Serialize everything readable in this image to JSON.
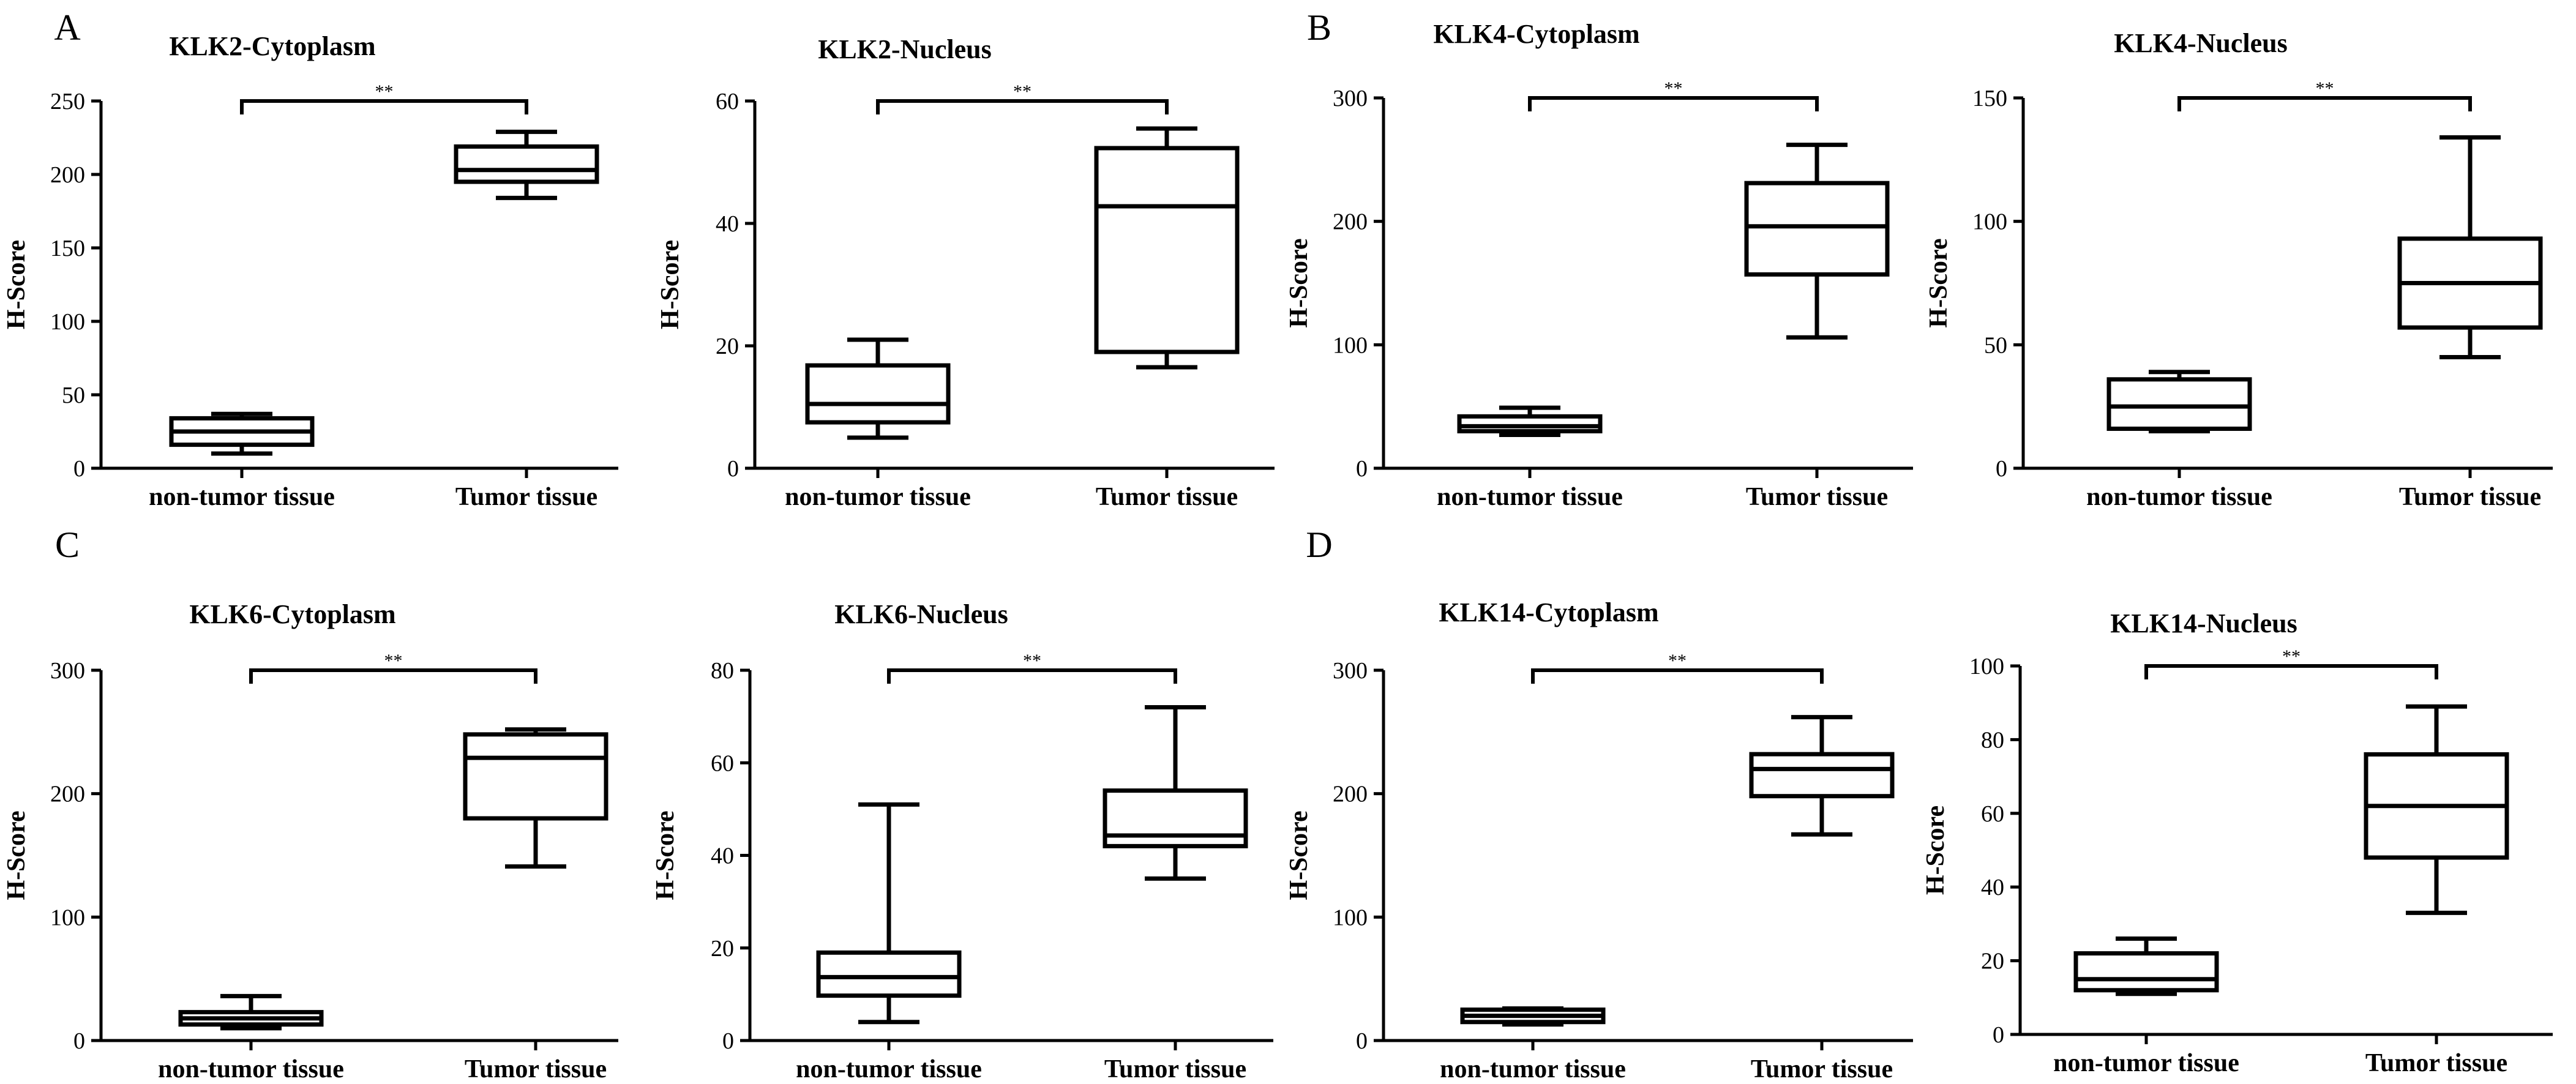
{
  "panel_letters": [
    "A",
    "B",
    "C",
    "D"
  ],
  "chart_data": [
    {
      "type": "box",
      "title": "KLK2-Cytoplasm",
      "xlabel": "",
      "ylabel": "H-Score",
      "ylim": [
        0,
        250
      ],
      "yticks": [
        0,
        50,
        100,
        150,
        200,
        250
      ],
      "categories": [
        "non-tumor tissue",
        "Tumor tissue"
      ],
      "boxes": [
        {
          "category": "non-tumor tissue",
          "min": 10,
          "q1": 16,
          "median": 25,
          "q3": 34,
          "max": 37
        },
        {
          "category": "Tumor tissue",
          "min": 184,
          "q1": 195,
          "median": 203,
          "q3": 219,
          "max": 229
        }
      ],
      "significance": "**"
    },
    {
      "type": "box",
      "title": "KLK2-Nucleus",
      "xlabel": "",
      "ylabel": "H-Score",
      "ylim": [
        0,
        60
      ],
      "yticks": [
        0,
        20,
        40,
        60
      ],
      "categories": [
        "non-tumor tissue",
        "Tumor tissue"
      ],
      "boxes": [
        {
          "category": "non-tumor tissue",
          "min": 5,
          "q1": 7.5,
          "median": 10.5,
          "q3": 16.8,
          "max": 21
        },
        {
          "category": "Tumor tissue",
          "min": 16.5,
          "q1": 19,
          "median": 42.8,
          "q3": 52.3,
          "max": 55.5
        }
      ],
      "significance": "**"
    },
    {
      "type": "box",
      "title": "KLK4-Cytoplasm",
      "xlabel": "",
      "ylabel": "H-Score",
      "ylim": [
        0,
        300
      ],
      "yticks": [
        0,
        100,
        200,
        300
      ],
      "categories": [
        "non-tumor tissue",
        "Tumor tissue"
      ],
      "boxes": [
        {
          "category": "non-tumor tissue",
          "min": 27,
          "q1": 30,
          "median": 34,
          "q3": 42,
          "max": 49
        },
        {
          "category": "Tumor tissue",
          "min": 106,
          "q1": 157,
          "median": 196,
          "q3": 231,
          "max": 262
        }
      ],
      "significance": "**"
    },
    {
      "type": "box",
      "title": "KLK4-Nucleus",
      "xlabel": "",
      "ylabel": "H-Score",
      "ylim": [
        0,
        150
      ],
      "yticks": [
        0,
        50,
        100,
        150
      ],
      "categories": [
        "non-tumor tissue",
        "Tumor tissue"
      ],
      "boxes": [
        {
          "category": "non-tumor tissue",
          "min": 15,
          "q1": 16,
          "median": 25,
          "q3": 36,
          "max": 39
        },
        {
          "category": "Tumor tissue",
          "min": 45,
          "q1": 57,
          "median": 75,
          "q3": 93,
          "max": 134
        }
      ],
      "significance": "**"
    },
    {
      "type": "box",
      "title": "KLK6-Cytoplasm",
      "xlabel": "",
      "ylabel": "H-Score",
      "ylim": [
        0,
        300
      ],
      "yticks": [
        0,
        100,
        200,
        300
      ],
      "categories": [
        "non-tumor tissue",
        "Tumor tissue"
      ],
      "boxes": [
        {
          "category": "non-tumor tissue",
          "min": 10,
          "q1": 13,
          "median": 18,
          "q3": 23,
          "max": 36
        },
        {
          "category": "Tumor tissue",
          "min": 141,
          "q1": 180,
          "median": 229,
          "q3": 248,
          "max": 252
        }
      ],
      "significance": "**"
    },
    {
      "type": "box",
      "title": "KLK6-Nucleus",
      "xlabel": "",
      "ylabel": "H-Score",
      "ylim": [
        0,
        80
      ],
      "yticks": [
        0,
        20,
        40,
        60,
        80
      ],
      "categories": [
        "non-tumor tissue",
        "Tumor tissue"
      ],
      "boxes": [
        {
          "category": "non-tumor tissue",
          "min": 4,
          "q1": 9.7,
          "median": 13.7,
          "q3": 19,
          "max": 51
        },
        {
          "category": "Tumor tissue",
          "min": 35,
          "q1": 42,
          "median": 44.3,
          "q3": 54,
          "max": 72
        }
      ],
      "significance": "**"
    },
    {
      "type": "box",
      "title": "KLK14-Cytoplasm",
      "xlabel": "",
      "ylabel": "H-Score",
      "ylim": [
        0,
        300
      ],
      "yticks": [
        0,
        100,
        200,
        300
      ],
      "categories": [
        "non-tumor tissue",
        "Tumor tissue"
      ],
      "boxes": [
        {
          "category": "non-tumor tissue",
          "min": 13,
          "q1": 15,
          "median": 20,
          "q3": 25,
          "max": 26
        },
        {
          "category": "Tumor tissue",
          "min": 167,
          "q1": 198,
          "median": 220,
          "q3": 232,
          "max": 262
        }
      ],
      "significance": "**"
    },
    {
      "type": "box",
      "title": "KLK14-Nucleus",
      "xlabel": "",
      "ylabel": "H-Score",
      "ylim": [
        0,
        100
      ],
      "yticks": [
        0,
        20,
        40,
        60,
        80,
        100
      ],
      "categories": [
        "non-tumor tissue",
        "Tumor tissue"
      ],
      "boxes": [
        {
          "category": "non-tumor tissue",
          "min": 11,
          "q1": 12,
          "median": 15,
          "q3": 22,
          "max": 26
        },
        {
          "category": "Tumor tissue",
          "min": 33,
          "q1": 48,
          "median": 62,
          "q3": 76,
          "max": 89
        }
      ],
      "significance": "**"
    }
  ]
}
